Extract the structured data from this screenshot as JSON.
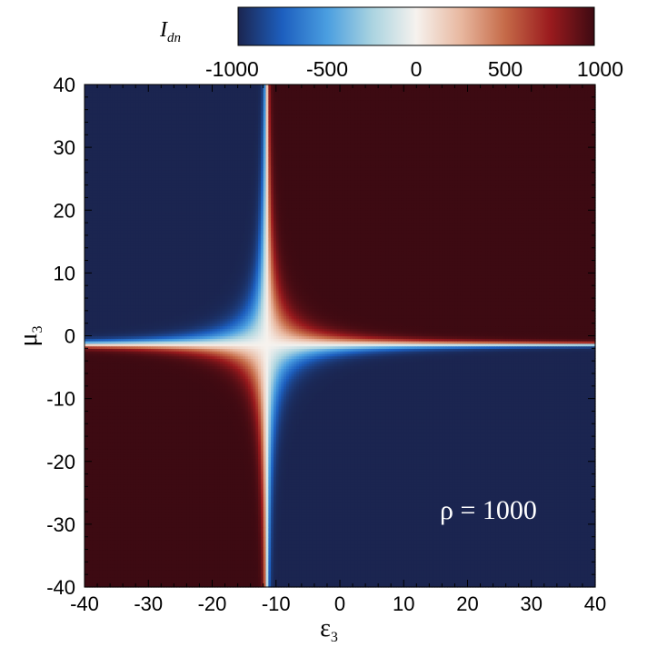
{
  "chart_data": {
    "type": "heatmap",
    "title": "",
    "xlabel_symbol": "ε",
    "xlabel_sub": "3",
    "ylabel_symbol": "μ",
    "ylabel_sub": "3",
    "xlim": [
      -40,
      40
    ],
    "ylim": [
      -40,
      40
    ],
    "xticks": [
      -40,
      -30,
      -20,
      -10,
      0,
      10,
      20,
      30,
      40
    ],
    "yticks": [
      -40,
      -30,
      -20,
      -10,
      0,
      10,
      20,
      30,
      40
    ],
    "grid": false,
    "annotation": "ρ = 1000",
    "colorbar": {
      "label_symbol": "I",
      "label_sub": "dn",
      "range": [
        -1000,
        1000
      ],
      "ticks": [
        -1000,
        -500,
        0,
        500,
        1000
      ],
      "colors": [
        "#1b2550",
        "#1d5fbf",
        "#4a9ee0",
        "#a9d3e0",
        "#f6f2ee",
        "#e8b8a0",
        "#c56a48",
        "#9b1b1e",
        "#3d0a12"
      ]
    },
    "field": {
      "description": "I_dn saturates at ±1000; white cross centered near ε3 = -11.5, μ3 = -1.3",
      "center": [
        -11.5,
        -1.3
      ],
      "quadrant_sign": {
        "top_left": -1,
        "top_right": 1,
        "bottom_left": 1,
        "bottom_right": -1
      },
      "saturation": 1000
    }
  }
}
